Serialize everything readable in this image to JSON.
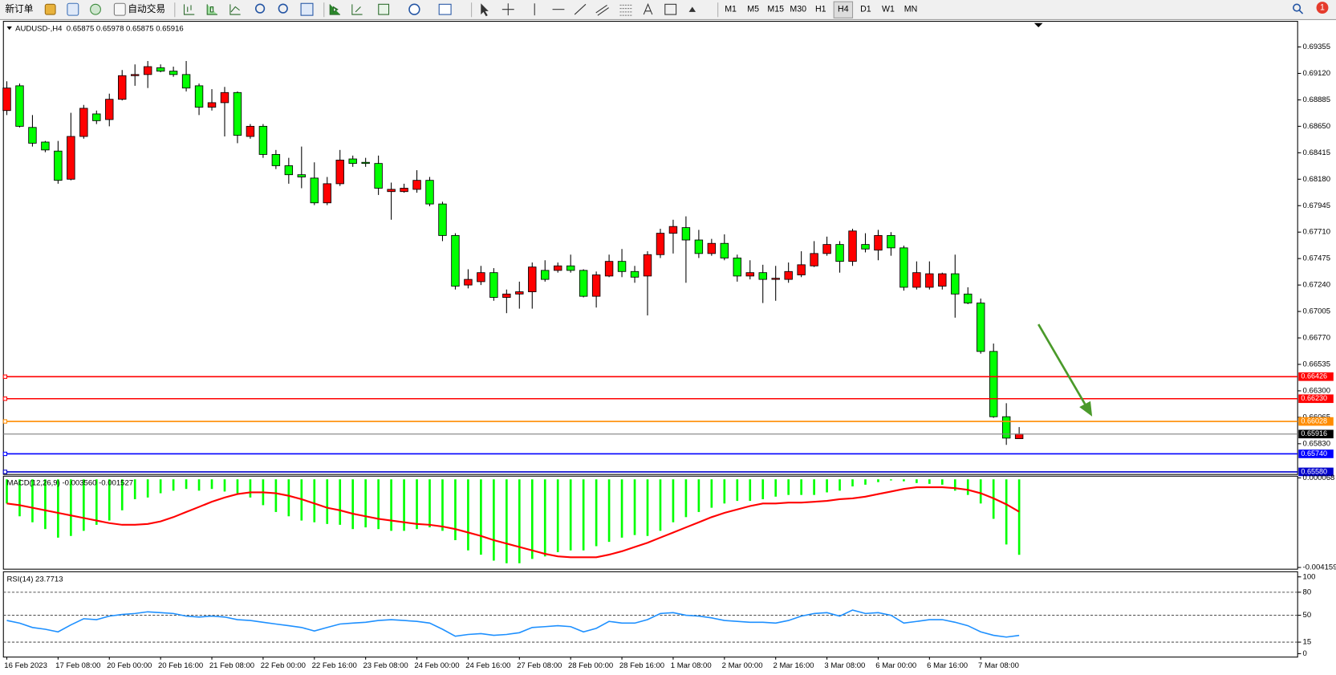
{
  "toolbar": {
    "new_order": "新订单",
    "auto_trading": "自动交易",
    "timeframes": [
      "M1",
      "M5",
      "M15",
      "M30",
      "H1",
      "H4",
      "D1",
      "W1",
      "MN"
    ],
    "active_timeframe": "H4",
    "notifications": "1"
  },
  "chart_data": [
    {
      "type": "candlestick",
      "title": "AUDUSD-,H4  0.65875 0.65978 0.65875 0.65916",
      "categories": [
        "16 Feb 2023",
        null,
        null,
        null,
        "17 Feb 08:00",
        null,
        null,
        null,
        "20 Feb 00:00",
        null,
        null,
        null,
        "20 Feb 16:00",
        null,
        null,
        null,
        "21 Feb 08:00",
        null,
        null,
        null,
        "22 Feb 00:00",
        null,
        null,
        null,
        "22 Feb 16:00",
        null,
        null,
        null,
        "23 Feb 08:00",
        null,
        null,
        null,
        "24 Feb 00:00",
        null,
        null,
        null,
        "24 Feb 16:00",
        null,
        null,
        null,
        "27 Feb 08:00",
        null,
        null,
        null,
        "28 Feb 00:00",
        null,
        null,
        null,
        "28 Feb 16:00",
        null,
        null,
        null,
        "1 Mar 08:00",
        null,
        null,
        null,
        "2 Mar 00:00",
        null,
        null,
        null,
        "2 Mar 16:00",
        null,
        null,
        null,
        "3 Mar 08:00",
        null,
        null,
        null,
        "6 Mar 00:00",
        null,
        null,
        null,
        "6 Mar 16:00",
        null,
        null,
        null,
        "7 Mar 08:00",
        null,
        null,
        null
      ],
      "open": [
        0.6879,
        0.6901,
        0.6864,
        0.6851,
        0.6843,
        0.6818,
        0.6856,
        0.6876,
        0.6871,
        0.6889,
        0.691,
        0.6911,
        0.6917,
        0.6914,
        0.6911,
        0.6901,
        0.6882,
        0.6886,
        0.6895,
        0.6856,
        0.6865,
        0.684,
        0.683,
        0.6822,
        0.6819,
        0.6797,
        0.6814,
        0.6836,
        0.6833,
        0.6832,
        0.6807,
        0.6807,
        0.6809,
        0.6817,
        0.6796,
        0.6768,
        0.6724,
        0.6727,
        0.6735,
        0.6713,
        0.6716,
        0.6718,
        0.6737,
        0.6737,
        0.6741,
        0.6737,
        0.6714,
        0.6732,
        0.6745,
        0.6736,
        0.6732,
        0.6751,
        0.677,
        0.6775,
        0.6764,
        0.6752,
        0.6761,
        0.6748,
        0.6732,
        0.6735,
        0.6729,
        0.6729,
        0.6733,
        0.6741,
        0.6752,
        0.676,
        0.6745,
        0.676,
        0.6755,
        0.6768,
        0.6757,
        0.6722,
        0.6722,
        0.6723,
        0.6734,
        0.6716,
        0.6708,
        0.6665,
        0.6607,
        0.65875
      ],
      "high": [
        0.6905,
        0.6903,
        0.6875,
        0.6852,
        0.6852,
        0.6877,
        0.6884,
        0.6879,
        0.6894,
        0.6915,
        0.692,
        0.6923,
        0.692,
        0.6918,
        0.6923,
        0.6903,
        0.6898,
        0.69,
        0.6896,
        0.6867,
        0.6867,
        0.6844,
        0.6837,
        0.6847,
        0.6833,
        0.682,
        0.6844,
        0.6839,
        0.6837,
        0.6839,
        0.6815,
        0.6814,
        0.6826,
        0.682,
        0.6798,
        0.677,
        0.6738,
        0.6741,
        0.6739,
        0.672,
        0.6727,
        0.6744,
        0.6746,
        0.6744,
        0.6751,
        0.6738,
        0.6736,
        0.6751,
        0.6756,
        0.6741,
        0.6754,
        0.6774,
        0.6782,
        0.6785,
        0.6773,
        0.6765,
        0.6769,
        0.6751,
        0.6746,
        0.6742,
        0.6741,
        0.6744,
        0.6754,
        0.6763,
        0.6767,
        0.6763,
        0.6774,
        0.677,
        0.6773,
        0.6771,
        0.6759,
        0.6745,
        0.6745,
        0.6735,
        0.6751,
        0.6722,
        0.6712,
        0.6672,
        0.6619,
        0.65978
      ],
      "low": [
        0.6875,
        0.6864,
        0.6847,
        0.6842,
        0.6814,
        0.6817,
        0.6854,
        0.6867,
        0.6865,
        0.6888,
        0.6901,
        0.6899,
        0.6913,
        0.6909,
        0.6896,
        0.6875,
        0.6879,
        0.6856,
        0.685,
        0.6854,
        0.6837,
        0.6827,
        0.6814,
        0.681,
        0.6795,
        0.6795,
        0.6812,
        0.6829,
        0.6829,
        0.6804,
        0.6782,
        0.6806,
        0.6806,
        0.6794,
        0.6763,
        0.672,
        0.6721,
        0.6724,
        0.671,
        0.6699,
        0.6703,
        0.6703,
        0.6727,
        0.6735,
        0.6735,
        0.6713,
        0.6704,
        0.6731,
        0.6731,
        0.6726,
        0.6697,
        0.6748,
        0.6752,
        0.6726,
        0.6748,
        0.675,
        0.6746,
        0.6727,
        0.6729,
        0.6708,
        0.671,
        0.6726,
        0.6731,
        0.674,
        0.675,
        0.6735,
        0.6741,
        0.6753,
        0.6746,
        0.675,
        0.6719,
        0.672,
        0.672,
        0.672,
        0.6695,
        0.6707,
        0.6663,
        0.6606,
        0.6582,
        0.65875
      ],
      "close": [
        0.6899,
        0.6865,
        0.685,
        0.6844,
        0.6817,
        0.6856,
        0.6881,
        0.687,
        0.6889,
        0.691,
        0.6911,
        0.6918,
        0.6914,
        0.6911,
        0.6899,
        0.6882,
        0.6886,
        0.6895,
        0.6857,
        0.6865,
        0.684,
        0.683,
        0.6822,
        0.682,
        0.6797,
        0.6814,
        0.6835,
        0.6832,
        0.6832,
        0.681,
        0.6809,
        0.681,
        0.6817,
        0.6796,
        0.6768,
        0.6723,
        0.6729,
        0.6735,
        0.6713,
        0.6716,
        0.6718,
        0.674,
        0.6729,
        0.6741,
        0.6737,
        0.6714,
        0.6733,
        0.6745,
        0.6736,
        0.6731,
        0.6751,
        0.677,
        0.6776,
        0.6764,
        0.6752,
        0.6761,
        0.6748,
        0.6732,
        0.6735,
        0.6729,
        0.673,
        0.6736,
        0.6742,
        0.6752,
        0.676,
        0.6745,
        0.6772,
        0.6756,
        0.6768,
        0.6757,
        0.6722,
        0.6735,
        0.6734,
        0.6734,
        0.6716,
        0.6708,
        0.6665,
        0.6607,
        0.6588,
        0.65916
      ],
      "up_color": "#ff0000",
      "down_color": "#00ff00",
      "ylim": [
        0.65557,
        0.69575
      ],
      "yticks": [
        0.69355,
        {
          "value": 0.6912,
          "label": "0.69120"
        },
        0.68885,
        {
          "value": 0.6865,
          "label": "0.68650"
        },
        0.68415,
        {
          "value": 0.6818,
          "label": "0.68180"
        },
        0.67945,
        {
          "value": 0.6771,
          "label": "0.67710"
        },
        0.67475,
        {
          "value": 0.6724,
          "label": "0.67240"
        },
        0.67005,
        {
          "value": 0.6677,
          "label": "0.66770"
        },
        0.66535,
        {
          "value": 0.663,
          "label": "0.66300"
        },
        0.66065,
        {
          "value": 0.6583,
          "label": "0.65830"
        }
      ],
      "levels": [
        {
          "value": 0.66426,
          "color": "#ff0000"
        },
        {
          "value": 0.6623,
          "label": "0.66230",
          "color": "#ff0000"
        },
        {
          "value": 0.66028,
          "color": "#ff8c00"
        },
        {
          "value": 0.6574,
          "label": "0.65740",
          "color": "#0000ff"
        },
        {
          "value": 0.6558,
          "label": "0.65580",
          "color": "#0000cd"
        }
      ],
      "price_line": {
        "value": 0.65916,
        "color": "#808080"
      }
    },
    {
      "type": "macd",
      "title": "MACD(12,26,9) -0.003560 -0.001527",
      "histogram": {
        "color": "#00ff00",
        "values": [
          -0.00114,
          -0.001744,
          -0.002026,
          -0.002348,
          -0.00275,
          -0.00267,
          -0.002428,
          -0.002146,
          -0.001945,
          -0.001462,
          -0.000939,
          -0.000858,
          -0.000657,
          -0.000536,
          -0.000455,
          -0.000536,
          -0.000455,
          -0.000576,
          -0.000657,
          -0.000858,
          -0.00122,
          -0.001542,
          -0.001744,
          -0.001945,
          -0.002026,
          -0.002106,
          -0.002146,
          -0.002348,
          -0.002267,
          -0.002348,
          -0.002428,
          -0.002428,
          -0.002348,
          -0.002267,
          -0.002428,
          -0.002871,
          -0.003354,
          -0.003555,
          -0.003837,
          -0.003958,
          -0.003958,
          -0.003757,
          -0.003636,
          -0.003435,
          -0.003354,
          -0.003354,
          -0.003153,
          -0.002952,
          -0.00275,
          -0.002629,
          -0.00267,
          -0.002428,
          -0.002026,
          -0.001784,
          -0.001542,
          -0.001341,
          -0.00114,
          -0.001019,
          -0.001019,
          -0.000939,
          -0.000818,
          -0.000737,
          -0.000737,
          -0.000737,
          -0.000616,
          -0.000536,
          -0.000335,
          -0.000254,
          -0.000133,
          -5.3e-05,
          -9.3e-05,
          -0.000174,
          -0.000214,
          -0.000254,
          -0.000536,
          -0.000737,
          -0.00114,
          -0.001864,
          -0.003072,
          -0.00356
        ]
      },
      "signal": {
        "color": "#ff0000",
        "values": [
          -0.00114,
          -0.00122,
          -0.001341,
          -0.001462,
          -0.001583,
          -0.001703,
          -0.001824,
          -0.001945,
          -0.002066,
          -0.002146,
          -0.002146,
          -0.002106,
          -0.001985,
          -0.001784,
          -0.001542,
          -0.001301,
          -0.001059,
          -0.000858,
          -0.000697,
          -0.000616,
          -0.000616,
          -0.000657,
          -0.000777,
          -0.000939,
          -0.00114,
          -0.001341,
          -0.001462,
          -0.001623,
          -0.001744,
          -0.001864,
          -0.001945,
          -0.002026,
          -0.002106,
          -0.002146,
          -0.002227,
          -0.002348,
          -0.002509,
          -0.00267,
          -0.002871,
          -0.003032,
          -0.003193,
          -0.003354,
          -0.003515,
          -0.003636,
          -0.003676,
          -0.003676,
          -0.003676,
          -0.003555,
          -0.003394,
          -0.003193,
          -0.002992,
          -0.00275,
          -0.002509,
          -0.002267,
          -0.002026,
          -0.001784,
          -0.001583,
          -0.001422,
          -0.001261,
          -0.00114,
          -0.00114,
          -0.0011,
          -0.0011,
          -0.001059,
          -0.001019,
          -0.000939,
          -0.000898,
          -0.000818,
          -0.000697,
          -0.000576,
          -0.000455,
          -0.000375,
          -0.000375,
          -0.000375,
          -0.000415,
          -0.000496,
          -0.000657,
          -0.000898,
          -0.00118,
          -0.001527
        ]
      },
      "ylim": [
        -0.004159,
        6.8e-05
      ],
      "yticks": [
        6.8e-05,
        -0.004159
      ]
    },
    {
      "type": "line",
      "title": "RSI(14) 23.7713",
      "color": "#1e90ff",
      "values": [
        43.2,
        39.8,
        34.1,
        31.8,
        28.4,
        37.5,
        45.5,
        44.3,
        48.9,
        51.1,
        52.3,
        54.5,
        53.4,
        52.3,
        48.9,
        47.7,
        48.9,
        47.7,
        44.3,
        43.2,
        40.9,
        38.6,
        36.4,
        34.1,
        29.5,
        34.1,
        38.6,
        39.8,
        40.9,
        43.2,
        44.3,
        43.2,
        42.0,
        39.8,
        31.8,
        22.7,
        25.0,
        26.1,
        23.9,
        25.0,
        27.3,
        34.1,
        35.2,
        36.4,
        35.2,
        28.4,
        33.0,
        42.0,
        39.8,
        39.8,
        44.3,
        52.3,
        53.4,
        50.0,
        48.9,
        46.6,
        43.2,
        42.0,
        40.9,
        40.9,
        39.8,
        43.2,
        48.9,
        52.3,
        53.4,
        48.9,
        56.8,
        52.3,
        53.4,
        50.0,
        39.8,
        42.0,
        44.3,
        44.3,
        40.9,
        36.4,
        28.4,
        23.9,
        21.6,
        23.7713
      ],
      "ylim": [
        0,
        100
      ],
      "yticks": [
        100,
        80,
        50,
        15,
        0
      ],
      "levels": [
        80,
        50,
        15
      ]
    }
  ]
}
